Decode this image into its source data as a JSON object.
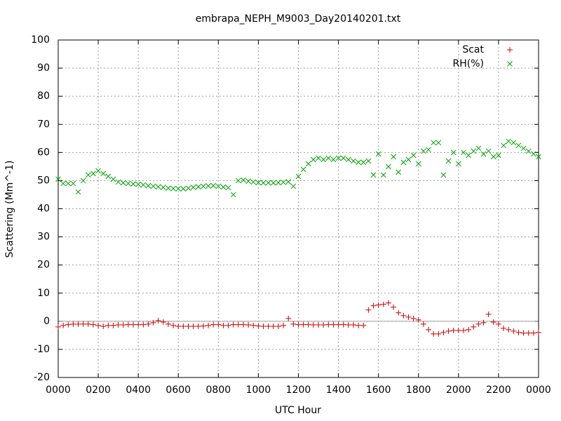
{
  "chart_data": {
    "type": "scatter",
    "title": "embrapa_NEPH_M9003_Day20140201.txt",
    "xlabel": "UTC Hour",
    "ylabel": "Scattering (Mm^-1)",
    "xlim": [
      0,
      24
    ],
    "ylim": [
      -20,
      100
    ],
    "xticks": [
      {
        "value": 0,
        "label": "0000"
      },
      {
        "value": 2,
        "label": "0200"
      },
      {
        "value": 4,
        "label": "0400"
      },
      {
        "value": 6,
        "label": "0600"
      },
      {
        "value": 8,
        "label": "0800"
      },
      {
        "value": 10,
        "label": "1000"
      },
      {
        "value": 12,
        "label": "1200"
      },
      {
        "value": 14,
        "label": "1400"
      },
      {
        "value": 16,
        "label": "1600"
      },
      {
        "value": 18,
        "label": "1800"
      },
      {
        "value": 20,
        "label": "2000"
      },
      {
        "value": 22,
        "label": "2200"
      },
      {
        "value": 24,
        "label": "0000"
      }
    ],
    "yticks": [
      -20,
      -10,
      0,
      10,
      20,
      30,
      40,
      50,
      60,
      70,
      80,
      90,
      100
    ],
    "grid": true,
    "legend": "top-right",
    "x": [
      0,
      0.25,
      0.5,
      0.75,
      1,
      1.25,
      1.5,
      1.75,
      2,
      2.25,
      2.5,
      2.75,
      3,
      3.25,
      3.5,
      3.75,
      4,
      4.25,
      4.5,
      4.75,
      5,
      5.25,
      5.5,
      5.75,
      6,
      6.25,
      6.5,
      6.75,
      7,
      7.25,
      7.5,
      7.75,
      8,
      8.25,
      8.5,
      8.75,
      9,
      9.25,
      9.5,
      9.75,
      10,
      10.25,
      10.5,
      10.75,
      11,
      11.25,
      11.5,
      11.75,
      12,
      12.25,
      12.5,
      12.75,
      13,
      13.25,
      13.5,
      13.75,
      14,
      14.25,
      14.5,
      14.75,
      15,
      15.25,
      15.5,
      15.75,
      16,
      16.25,
      16.5,
      16.75,
      17,
      17.25,
      17.5,
      17.75,
      18,
      18.25,
      18.5,
      18.75,
      19,
      19.25,
      19.5,
      19.75,
      20,
      20.25,
      20.5,
      20.75,
      21,
      21.25,
      21.5,
      21.75,
      22,
      22.25,
      22.5,
      22.75,
      23,
      23.25,
      23.5,
      23.75,
      24
    ],
    "series": [
      {
        "name": "Scat",
        "color": "#cc0000",
        "marker": "plus",
        "values": [
          -2,
          -1.5,
          -1.2,
          -1,
          -1,
          -1,
          -1,
          -1.2,
          -1.5,
          -1.8,
          -1.5,
          -1.5,
          -1.3,
          -1.3,
          -1.2,
          -1.2,
          -1.2,
          -1.2,
          -1,
          -0.5,
          0.2,
          -0.3,
          -1,
          -1.5,
          -1.8,
          -1.8,
          -1.8,
          -1.8,
          -1.8,
          -1.7,
          -1.5,
          -1.2,
          -1.2,
          -1.5,
          -1.5,
          -1.2,
          -1.2,
          -1.2,
          -1.3,
          -1.5,
          -1.7,
          -1.8,
          -1.8,
          -1.8,
          -1.8,
          -1.5,
          1,
          -1,
          -1.2,
          -1.2,
          -1.2,
          -1.3,
          -1.3,
          -1.3,
          -1.2,
          -1.2,
          -1.2,
          -1.2,
          -1.3,
          -1.3,
          -1.5,
          -1.5,
          4,
          5.5,
          5.8,
          6,
          6.5,
          5,
          3,
          2,
          1.5,
          1,
          0.5,
          -1,
          -3,
          -4.5,
          -4.5,
          -4,
          -3.5,
          -3.3,
          -3.3,
          -3.3,
          -3,
          -2,
          -1,
          -0.5,
          2.5,
          -0.3,
          -1,
          -2.5,
          -3,
          -3.5,
          -4,
          -4.2,
          -4.2,
          -4.2,
          -4
        ]
      },
      {
        "name": "RH(%)",
        "color": "#00a000",
        "marker": "cross",
        "values": [
          50.5,
          49,
          49,
          49,
          46,
          50,
          52,
          52.5,
          53.5,
          52.5,
          51.5,
          50.5,
          49.5,
          49.2,
          49,
          48.8,
          48.7,
          48.5,
          48.2,
          48,
          47.8,
          47.6,
          47.3,
          47.2,
          47.1,
          47.1,
          47.3,
          47.6,
          47.8,
          48,
          48.1,
          48.2,
          48,
          47.7,
          47.5,
          45,
          50,
          50.2,
          49.8,
          49.5,
          49.3,
          49.2,
          49.2,
          49.2,
          49.3,
          49.4,
          49.6,
          48,
          51.5,
          54,
          56,
          57.5,
          58,
          57.5,
          58,
          57.5,
          58,
          58,
          57.5,
          57,
          56.5,
          56.5,
          57,
          52,
          59.5,
          52,
          55,
          58.5,
          53,
          56.5,
          57.5,
          59,
          56,
          60.5,
          61,
          63.5,
          63.5,
          52,
          57,
          60,
          56,
          60,
          59,
          60.5,
          61.5,
          59.5,
          60.5,
          58.5,
          59,
          62.5,
          64,
          63.5,
          62.5,
          61.5,
          60.5,
          59.5,
          58.5
        ]
      }
    ]
  }
}
